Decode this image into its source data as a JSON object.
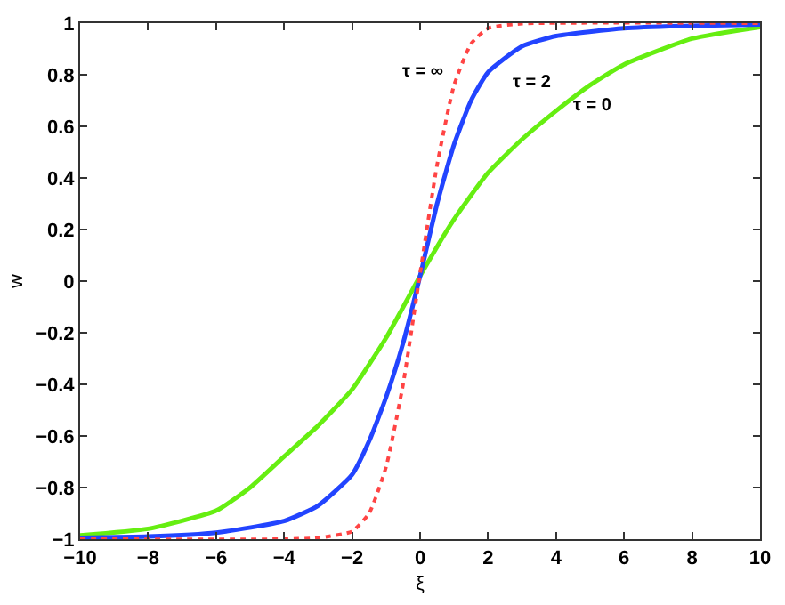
{
  "chart_data": {
    "type": "line",
    "xlabel": "ξ",
    "ylabel": "w",
    "xlim": [
      -10,
      10
    ],
    "xticks": [
      -10,
      -8,
      -6,
      -4,
      -2,
      0,
      2,
      4,
      6,
      8,
      10
    ],
    "ylim": [
      -1,
      1
    ],
    "yticks": [
      -1,
      -0.8,
      -0.6,
      -0.4,
      -0.2,
      0,
      0.2,
      0.4,
      0.6,
      0.8,
      1
    ],
    "legend": false,
    "series": [
      {
        "name": "τ = 0",
        "color": "#66ee11",
        "line_style": "solid",
        "x": [
          -10,
          -8,
          -6,
          -5,
          -4,
          -3,
          -2,
          -1,
          0,
          1,
          2,
          3,
          4,
          5,
          6,
          8,
          10
        ],
        "values": [
          -0.985,
          -0.96,
          -0.89,
          -0.8,
          -0.68,
          -0.56,
          -0.42,
          -0.22,
          0.02,
          0.24,
          0.42,
          0.55,
          0.66,
          0.76,
          0.84,
          0.94,
          0.985
        ]
      },
      {
        "name": "τ = 2",
        "color": "#2244ff",
        "line_style": "solid",
        "x": [
          -10,
          -8,
          -6,
          -4,
          -3,
          -2,
          -1.5,
          -1,
          -0.5,
          0,
          0.5,
          1,
          1.5,
          2,
          3,
          4,
          6,
          8,
          10
        ],
        "values": [
          -0.995,
          -0.99,
          -0.975,
          -0.93,
          -0.87,
          -0.75,
          -0.62,
          -0.45,
          -0.24,
          0.02,
          0.3,
          0.53,
          0.7,
          0.81,
          0.91,
          0.95,
          0.98,
          0.99,
          0.995
        ]
      },
      {
        "name": "τ = ∞",
        "color": "#ff4444",
        "line_style": "dotted",
        "x": [
          -10,
          -4,
          -3,
          -2,
          -1.5,
          -1,
          -0.5,
          0,
          0.5,
          1,
          1.5,
          2,
          3,
          10
        ],
        "values": [
          -1,
          -1,
          -0.995,
          -0.97,
          -0.9,
          -0.72,
          -0.4,
          0.03,
          0.45,
          0.76,
          0.92,
          0.98,
          0.998,
          1
        ]
      }
    ]
  }
}
